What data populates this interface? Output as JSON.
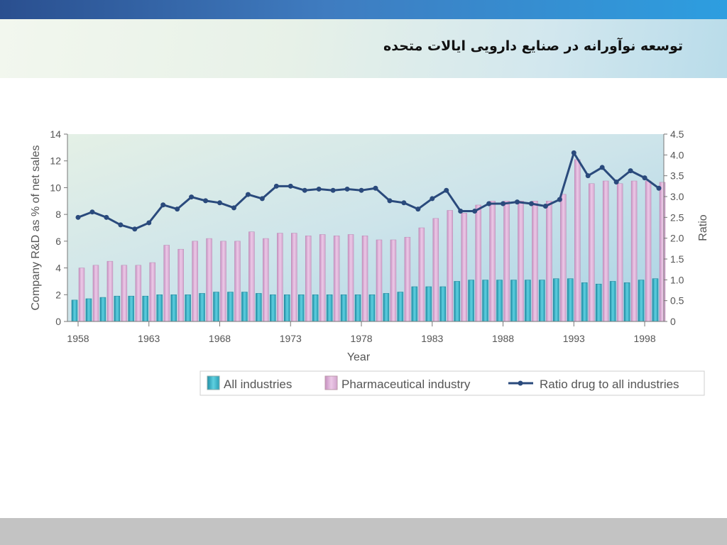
{
  "slide": {
    "title": "توسعه نوآورانه در صنایع دارویی ایالات متحده"
  },
  "chart_data": {
    "type": "bar",
    "x": [
      1958,
      1959,
      1960,
      1961,
      1962,
      1963,
      1964,
      1965,
      1966,
      1967,
      1968,
      1969,
      1970,
      1971,
      1972,
      1973,
      1974,
      1975,
      1976,
      1977,
      1978,
      1979,
      1980,
      1981,
      1982,
      1983,
      1984,
      1985,
      1986,
      1987,
      1988,
      1989,
      1990,
      1991,
      1992,
      1993,
      1994,
      1995,
      1996,
      1997,
      1998,
      1999
    ],
    "xticks": [
      "1958",
      "1963",
      "1968",
      "1973",
      "1978",
      "1983",
      "1988",
      "1993",
      "1998"
    ],
    "xlabel": "Year",
    "ylabel": "Company R&D as % of net sales",
    "y2label": "Ratio",
    "ylim": [
      0,
      14
    ],
    "y2lim": [
      0,
      4.5
    ],
    "yticks": [
      "0",
      "2",
      "4",
      "6",
      "8",
      "10",
      "12",
      "14"
    ],
    "y2ticks": [
      "0",
      "0.5",
      "1.0",
      "1.5",
      "2.0",
      "2.5",
      "3.0",
      "3.5",
      "4.0",
      "4.5"
    ],
    "series": [
      {
        "name": "All industries",
        "type": "bar",
        "axis": "left",
        "color": "#3fb1c4",
        "values": [
          1.6,
          1.7,
          1.8,
          1.9,
          1.9,
          1.9,
          2.0,
          2.0,
          2.0,
          2.1,
          2.2,
          2.2,
          2.2,
          2.1,
          2.0,
          2.0,
          2.0,
          2.0,
          2.0,
          2.0,
          2.0,
          2.0,
          2.1,
          2.2,
          2.6,
          2.6,
          2.6,
          3.0,
          3.1,
          3.1,
          3.1,
          3.1,
          3.1,
          3.1,
          3.2,
          3.2,
          2.9,
          2.8,
          3.0,
          2.9,
          3.1,
          3.2
        ]
      },
      {
        "name": "Pharmaceutical industry",
        "type": "bar",
        "axis": "left",
        "color": "#dcb1d6",
        "values": [
          4.0,
          4.2,
          4.5,
          4.2,
          4.2,
          4.4,
          5.7,
          5.4,
          6.0,
          6.2,
          6.0,
          6.0,
          6.7,
          6.2,
          6.6,
          6.6,
          6.4,
          6.5,
          6.4,
          6.5,
          6.4,
          6.1,
          6.1,
          6.3,
          7.0,
          7.7,
          8.3,
          8.1,
          8.7,
          9.0,
          9.0,
          9.0,
          9.0,
          9.0,
          9.5,
          12.1,
          10.3,
          10.5,
          10.3,
          10.5,
          10.5,
          10.4
        ]
      },
      {
        "name": "Ratio drug to all industries",
        "type": "line",
        "axis": "right",
        "color": "#2a4a7c",
        "values": [
          2.5,
          2.63,
          2.5,
          2.32,
          2.22,
          2.37,
          2.8,
          2.7,
          2.99,
          2.9,
          2.85,
          2.73,
          3.05,
          2.95,
          3.25,
          3.25,
          3.15,
          3.18,
          3.15,
          3.18,
          3.15,
          3.2,
          2.9,
          2.85,
          2.7,
          2.95,
          3.15,
          2.65,
          2.65,
          2.83,
          2.83,
          2.87,
          2.83,
          2.77,
          2.93,
          4.05,
          3.5,
          3.7,
          3.35,
          3.62,
          3.45,
          3.2
        ]
      }
    ],
    "legend": {
      "position": "bottom-right",
      "entries": [
        "All industries",
        "Pharmaceutical industry",
        "Ratio drug to all industries"
      ]
    }
  }
}
